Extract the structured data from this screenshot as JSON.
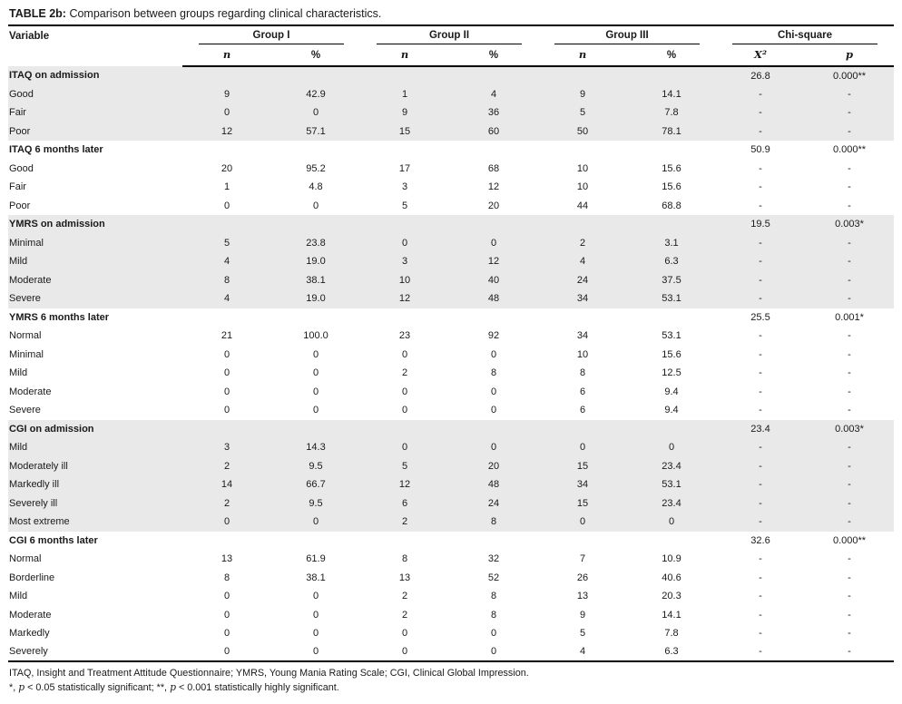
{
  "title": {
    "label": "TABLE 2b:",
    "text": " Comparison between groups regarding clinical characteristics."
  },
  "header": {
    "variable": "Variable",
    "groups": [
      "Group I",
      "Group II",
      "Group III",
      "Chi-square"
    ],
    "subheaders": [
      "n",
      "%",
      "n",
      "%",
      "n",
      "%",
      "X²",
      "p"
    ]
  },
  "table": {
    "sections": [
      {
        "label": "ITAQ on admission",
        "chi": "26.8",
        "p": "0.000**",
        "shaded": true,
        "rows": [
          {
            "label": "Good",
            "values": [
              "9",
              "42.9",
              "1",
              "4",
              "9",
              "14.1",
              "-",
              "-"
            ]
          },
          {
            "label": "Fair",
            "values": [
              "0",
              "0",
              "9",
              "36",
              "5",
              "7.8",
              "-",
              "-"
            ]
          },
          {
            "label": "Poor",
            "values": [
              "12",
              "57.1",
              "15",
              "60",
              "50",
              "78.1",
              "-",
              "-"
            ]
          }
        ]
      },
      {
        "label": "ITAQ 6 months later",
        "chi": "50.9",
        "p": "0.000**",
        "shaded": false,
        "rows": [
          {
            "label": "Good",
            "values": [
              "20",
              "95.2",
              "17",
              "68",
              "10",
              "15.6",
              "-",
              "-"
            ]
          },
          {
            "label": "Fair",
            "values": [
              "1",
              "4.8",
              "3",
              "12",
              "10",
              "15.6",
              "-",
              "-"
            ]
          },
          {
            "label": "Poor",
            "values": [
              "0",
              "0",
              "5",
              "20",
              "44",
              "68.8",
              "-",
              "-"
            ]
          }
        ]
      },
      {
        "label": "YMRS on admission",
        "chi": "19.5",
        "p": "0.003*",
        "shaded": true,
        "rows": [
          {
            "label": "Minimal",
            "values": [
              "5",
              "23.8",
              "0",
              "0",
              "2",
              "3.1",
              "-",
              "-"
            ]
          },
          {
            "label": "Mild",
            "values": [
              "4",
              "19.0",
              "3",
              "12",
              "4",
              "6.3",
              "-",
              "-"
            ]
          },
          {
            "label": "Moderate",
            "values": [
              "8",
              "38.1",
              "10",
              "40",
              "24",
              "37.5",
              "-",
              "-"
            ]
          },
          {
            "label": "Severe",
            "values": [
              "4",
              "19.0",
              "12",
              "48",
              "34",
              "53.1",
              "-",
              "-"
            ]
          }
        ]
      },
      {
        "label": "YMRS 6 months later",
        "chi": "25.5",
        "p": "0.001*",
        "shaded": false,
        "rows": [
          {
            "label": "Normal",
            "values": [
              "21",
              "100.0",
              "23",
              "92",
              "34",
              "53.1",
              "-",
              "-"
            ]
          },
          {
            "label": "Minimal",
            "values": [
              "0",
              "0",
              "0",
              "0",
              "10",
              "15.6",
              "-",
              "-"
            ]
          },
          {
            "label": "Mild",
            "values": [
              "0",
              "0",
              "2",
              "8",
              "8",
              "12.5",
              "-",
              "-"
            ]
          },
          {
            "label": "Moderate",
            "values": [
              "0",
              "0",
              "0",
              "0",
              "6",
              "9.4",
              "-",
              "-"
            ]
          },
          {
            "label": "Severe",
            "values": [
              "0",
              "0",
              "0",
              "0",
              "6",
              "9.4",
              "-",
              "-"
            ]
          }
        ]
      },
      {
        "label": "CGI on admission",
        "chi": "23.4",
        "p": "0.003*",
        "shaded": true,
        "rows": [
          {
            "label": "Mild",
            "values": [
              "3",
              "14.3",
              "0",
              "0",
              "0",
              "0",
              "-",
              "-"
            ]
          },
          {
            "label": "Moderately ill",
            "values": [
              "2",
              "9.5",
              "5",
              "20",
              "15",
              "23.4",
              "-",
              "-"
            ]
          },
          {
            "label": "Markedly ill",
            "values": [
              "14",
              "66.7",
              "12",
              "48",
              "34",
              "53.1",
              "-",
              "-"
            ]
          },
          {
            "label": "Severely ill",
            "values": [
              "2",
              "9.5",
              "6",
              "24",
              "15",
              "23.4",
              "-",
              "-"
            ]
          },
          {
            "label": "Most extreme",
            "values": [
              "0",
              "0",
              "2",
              "8",
              "0",
              "0",
              "-",
              "-"
            ]
          }
        ]
      },
      {
        "label": "CGI 6 months later",
        "chi": "32.6",
        "p": "0.000**",
        "shaded": false,
        "rows": [
          {
            "label": "Normal",
            "values": [
              "13",
              "61.9",
              "8",
              "32",
              "7",
              "10.9",
              "-",
              "-"
            ]
          },
          {
            "label": "Borderline",
            "values": [
              "8",
              "38.1",
              "13",
              "52",
              "26",
              "40.6",
              "-",
              "-"
            ]
          },
          {
            "label": "Mild",
            "values": [
              "0",
              "0",
              "2",
              "8",
              "13",
              "20.3",
              "-",
              "-"
            ]
          },
          {
            "label": "Moderate",
            "values": [
              "0",
              "0",
              "2",
              "8",
              "9",
              "14.1",
              "-",
              "-"
            ]
          },
          {
            "label": "Markedly",
            "values": [
              "0",
              "0",
              "0",
              "0",
              "5",
              "7.8",
              "-",
              "-"
            ]
          },
          {
            "label": "Severely",
            "values": [
              "0",
              "0",
              "0",
              "0",
              "4",
              "6.3",
              "-",
              "-"
            ]
          }
        ]
      }
    ]
  },
  "footnotes": {
    "line1": "ITAQ, Insight and Treatment Attitude Questionnaire; YMRS, Young Mania Rating Scale; CGI, Clinical Global Impression.",
    "line2_parts": [
      {
        "text": "*, "
      },
      {
        "text": "p",
        "italic": true
      },
      {
        "text": " < 0.05 statistically significant; **, "
      },
      {
        "text": "p",
        "italic": true
      },
      {
        "text": " < 0.001 statistically highly significant."
      }
    ]
  }
}
